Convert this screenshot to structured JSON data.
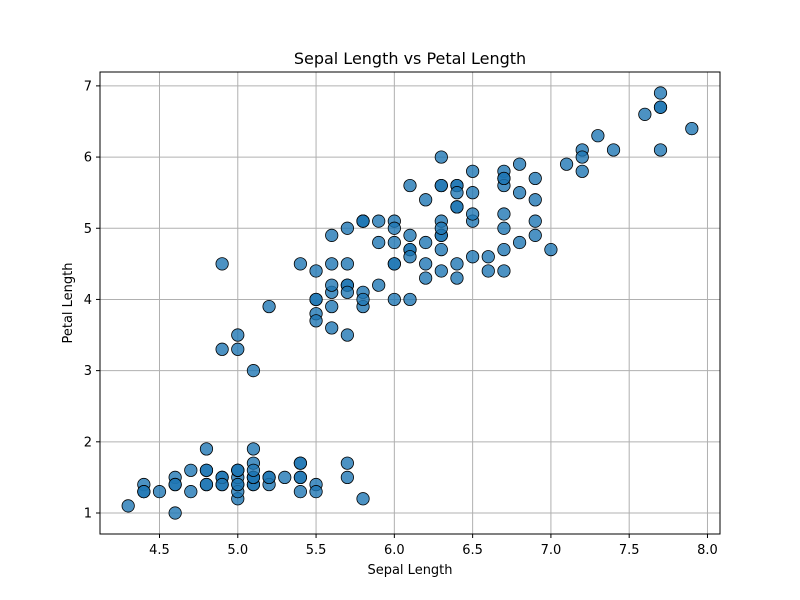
{
  "chart_data": {
    "type": "scatter",
    "title": "Sepal Length vs Petal Length",
    "xlabel": "Sepal Length",
    "ylabel": "Petal Length",
    "xlim": [
      4.12,
      8.08
    ],
    "ylim": [
      0.705,
      7.195
    ],
    "xticks": [
      4.5,
      5.0,
      5.5,
      6.0,
      6.5,
      7.0,
      7.5,
      8.0
    ],
    "xtick_labels": [
      "4.5",
      "5.0",
      "5.5",
      "6.0",
      "6.5",
      "7.0",
      "7.5",
      "8.0"
    ],
    "yticks": [
      1,
      2,
      3,
      4,
      5,
      6,
      7
    ],
    "ytick_labels": [
      "1",
      "2",
      "3",
      "4",
      "5",
      "6",
      "7"
    ],
    "grid": true,
    "point_color": "#1f77b4",
    "point_opacity": 0.8,
    "edge_color": "#000000",
    "grid_color": "#b0b0b0",
    "points": [
      [
        5.1,
        1.4
      ],
      [
        4.9,
        1.4
      ],
      [
        4.7,
        1.3
      ],
      [
        4.6,
        1.5
      ],
      [
        5.0,
        1.4
      ],
      [
        5.4,
        1.7
      ],
      [
        4.6,
        1.4
      ],
      [
        5.0,
        1.5
      ],
      [
        4.4,
        1.4
      ],
      [
        4.9,
        1.5
      ],
      [
        5.4,
        1.5
      ],
      [
        4.8,
        1.6
      ],
      [
        4.8,
        1.4
      ],
      [
        4.3,
        1.1
      ],
      [
        5.8,
        1.2
      ],
      [
        5.7,
        1.5
      ],
      [
        5.4,
        1.3
      ],
      [
        5.1,
        1.4
      ],
      [
        5.7,
        1.7
      ],
      [
        5.1,
        1.5
      ],
      [
        5.4,
        1.7
      ],
      [
        5.1,
        1.5
      ],
      [
        4.6,
        1.0
      ],
      [
        5.1,
        1.7
      ],
      [
        4.8,
        1.9
      ],
      [
        5.0,
        1.6
      ],
      [
        5.0,
        1.6
      ],
      [
        5.2,
        1.5
      ],
      [
        5.2,
        1.4
      ],
      [
        4.7,
        1.6
      ],
      [
        4.8,
        1.6
      ],
      [
        5.4,
        1.5
      ],
      [
        5.2,
        1.5
      ],
      [
        5.5,
        1.4
      ],
      [
        4.9,
        1.5
      ],
      [
        5.0,
        1.2
      ],
      [
        5.5,
        1.3
      ],
      [
        4.9,
        1.4
      ],
      [
        4.4,
        1.3
      ],
      [
        5.1,
        1.5
      ],
      [
        5.0,
        1.3
      ],
      [
        4.5,
        1.3
      ],
      [
        4.4,
        1.3
      ],
      [
        5.0,
        1.6
      ],
      [
        5.1,
        1.9
      ],
      [
        4.8,
        1.4
      ],
      [
        5.1,
        1.6
      ],
      [
        4.6,
        1.4
      ],
      [
        5.3,
        1.5
      ],
      [
        5.0,
        1.4
      ],
      [
        7.0,
        4.7
      ],
      [
        6.4,
        4.5
      ],
      [
        6.9,
        4.9
      ],
      [
        5.5,
        4.0
      ],
      [
        6.5,
        4.6
      ],
      [
        5.7,
        4.5
      ],
      [
        6.3,
        4.7
      ],
      [
        4.9,
        3.3
      ],
      [
        6.6,
        4.6
      ],
      [
        5.2,
        3.9
      ],
      [
        5.0,
        3.5
      ],
      [
        5.9,
        4.2
      ],
      [
        6.0,
        4.0
      ],
      [
        6.1,
        4.7
      ],
      [
        5.6,
        3.6
      ],
      [
        6.7,
        4.4
      ],
      [
        5.6,
        4.5
      ],
      [
        5.8,
        4.1
      ],
      [
        6.2,
        4.5
      ],
      [
        5.6,
        3.9
      ],
      [
        5.9,
        4.8
      ],
      [
        6.1,
        4.0
      ],
      [
        6.3,
        4.9
      ],
      [
        6.1,
        4.7
      ],
      [
        6.4,
        4.3
      ],
      [
        6.6,
        4.4
      ],
      [
        6.8,
        4.8
      ],
      [
        6.7,
        5.0
      ],
      [
        6.0,
        4.5
      ],
      [
        5.7,
        3.5
      ],
      [
        5.5,
        3.8
      ],
      [
        5.5,
        3.7
      ],
      [
        5.8,
        3.9
      ],
      [
        6.0,
        5.1
      ],
      [
        5.4,
        4.5
      ],
      [
        6.0,
        4.5
      ],
      [
        6.7,
        4.7
      ],
      [
        6.3,
        4.4
      ],
      [
        5.6,
        4.1
      ],
      [
        5.5,
        4.0
      ],
      [
        5.5,
        4.4
      ],
      [
        6.1,
        4.6
      ],
      [
        5.8,
        4.0
      ],
      [
        5.0,
        3.3
      ],
      [
        5.6,
        4.2
      ],
      [
        5.7,
        4.2
      ],
      [
        5.7,
        4.2
      ],
      [
        6.2,
        4.3
      ],
      [
        5.1,
        3.0
      ],
      [
        5.7,
        4.1
      ],
      [
        6.3,
        6.0
      ],
      [
        5.8,
        5.1
      ],
      [
        7.1,
        5.9
      ],
      [
        6.3,
        5.6
      ],
      [
        6.5,
        5.8
      ],
      [
        7.6,
        6.6
      ],
      [
        4.9,
        4.5
      ],
      [
        7.3,
        6.3
      ],
      [
        6.7,
        5.8
      ],
      [
        7.2,
        6.1
      ],
      [
        6.5,
        5.1
      ],
      [
        6.4,
        5.3
      ],
      [
        6.8,
        5.5
      ],
      [
        5.7,
        5.0
      ],
      [
        5.8,
        5.1
      ],
      [
        6.4,
        5.3
      ],
      [
        6.5,
        5.5
      ],
      [
        7.7,
        6.7
      ],
      [
        7.7,
        6.9
      ],
      [
        6.0,
        5.0
      ],
      [
        6.9,
        5.7
      ],
      [
        5.6,
        4.9
      ],
      [
        7.7,
        6.7
      ],
      [
        6.3,
        4.9
      ],
      [
        6.7,
        5.7
      ],
      [
        7.2,
        6.0
      ],
      [
        6.2,
        4.8
      ],
      [
        6.1,
        4.9
      ],
      [
        6.4,
        5.6
      ],
      [
        7.2,
        5.8
      ],
      [
        7.4,
        6.1
      ],
      [
        7.9,
        6.4
      ],
      [
        6.4,
        5.6
      ],
      [
        6.3,
        5.1
      ],
      [
        6.1,
        5.6
      ],
      [
        7.7,
        6.1
      ],
      [
        6.3,
        5.6
      ],
      [
        6.4,
        5.5
      ],
      [
        6.0,
        4.8
      ],
      [
        6.9,
        5.4
      ],
      [
        6.7,
        5.6
      ],
      [
        6.9,
        5.1
      ],
      [
        5.8,
        5.1
      ],
      [
        6.8,
        5.9
      ],
      [
        6.7,
        5.7
      ],
      [
        6.7,
        5.2
      ],
      [
        6.3,
        5.0
      ],
      [
        6.5,
        5.2
      ],
      [
        6.2,
        5.4
      ],
      [
        5.9,
        5.1
      ]
    ]
  }
}
